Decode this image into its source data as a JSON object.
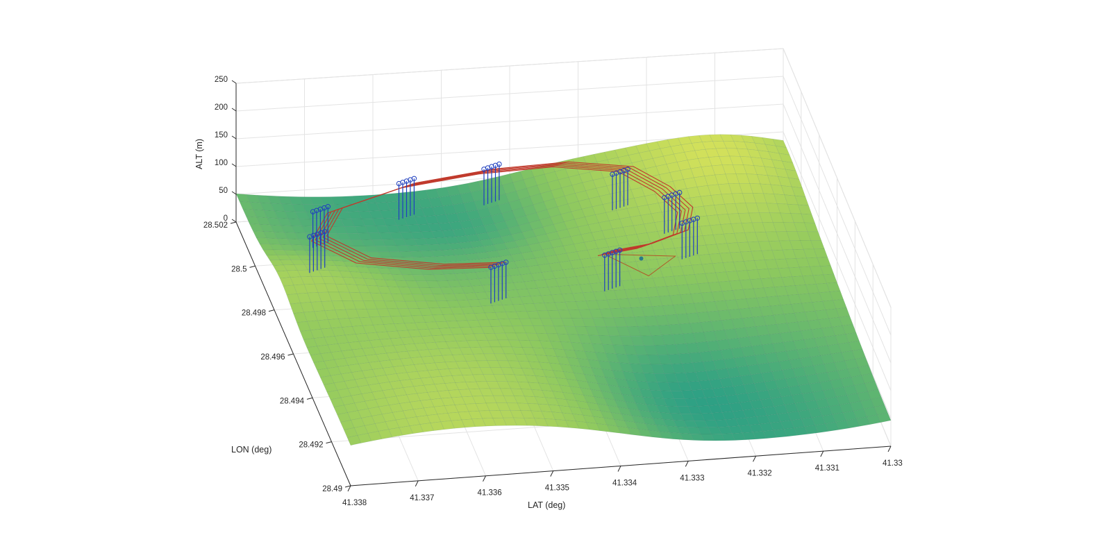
{
  "chart_data": {
    "type": "surface3d",
    "title": "",
    "xlabel": "LAT (deg)",
    "ylabel": "LON (deg)",
    "zlabel": "ALT (m)",
    "x_ticks": [
      "41.338",
      "41.337",
      "41.336",
      "41.335",
      "41.334",
      "41.333",
      "41.332",
      "41.331",
      "41.33"
    ],
    "y_ticks": [
      "28.502",
      "28.5",
      "28.498",
      "28.496",
      "28.494",
      "28.492",
      "28.49"
    ],
    "z_ticks": [
      "0",
      "50",
      "100",
      "150",
      "200",
      "250"
    ],
    "xlim": [
      41.33,
      41.338
    ],
    "ylim": [
      28.49,
      28.502
    ],
    "zlim": [
      0,
      250
    ],
    "grid": true,
    "colormap": "parula",
    "colors": {
      "surface_low": "#1f9a8a",
      "surface_high": "#d9e35a",
      "trajectory": "#c0392b",
      "waypoint": "#1f3fbf"
    },
    "series": [
      {
        "kind": "trajectory-lanes",
        "lanes": 5,
        "path_lat": [
          41.3349,
          41.3358,
          41.3368,
          41.3373,
          41.3369,
          41.3357,
          41.3345,
          41.3334,
          41.3325,
          41.3321,
          41.3319,
          41.3321,
          41.3327,
          41.3333
        ],
        "path_lon": [
          28.4966,
          28.4967,
          28.4972,
          28.4983,
          28.4995,
          28.5004,
          28.5008,
          28.5009,
          28.5005,
          28.4995,
          28.4985,
          28.4975,
          28.497,
          28.4968
        ],
        "altitude": 105
      },
      {
        "kind": "waypoint-stems",
        "groups_lat": [
          41.3373,
          41.3371,
          41.3357,
          41.3344,
          41.3326,
          41.332,
          41.3319,
          41.3332,
          41.3349
        ],
        "groups_lon": [
          28.4985,
          28.4996,
          28.5006,
          28.501,
          28.5004,
          28.4992,
          28.498,
          28.4968,
          28.4966
        ],
        "altitude": 105
      }
    ],
    "goal_marker": {
      "lat": 41.3328,
      "lon": 28.4966
    }
  }
}
